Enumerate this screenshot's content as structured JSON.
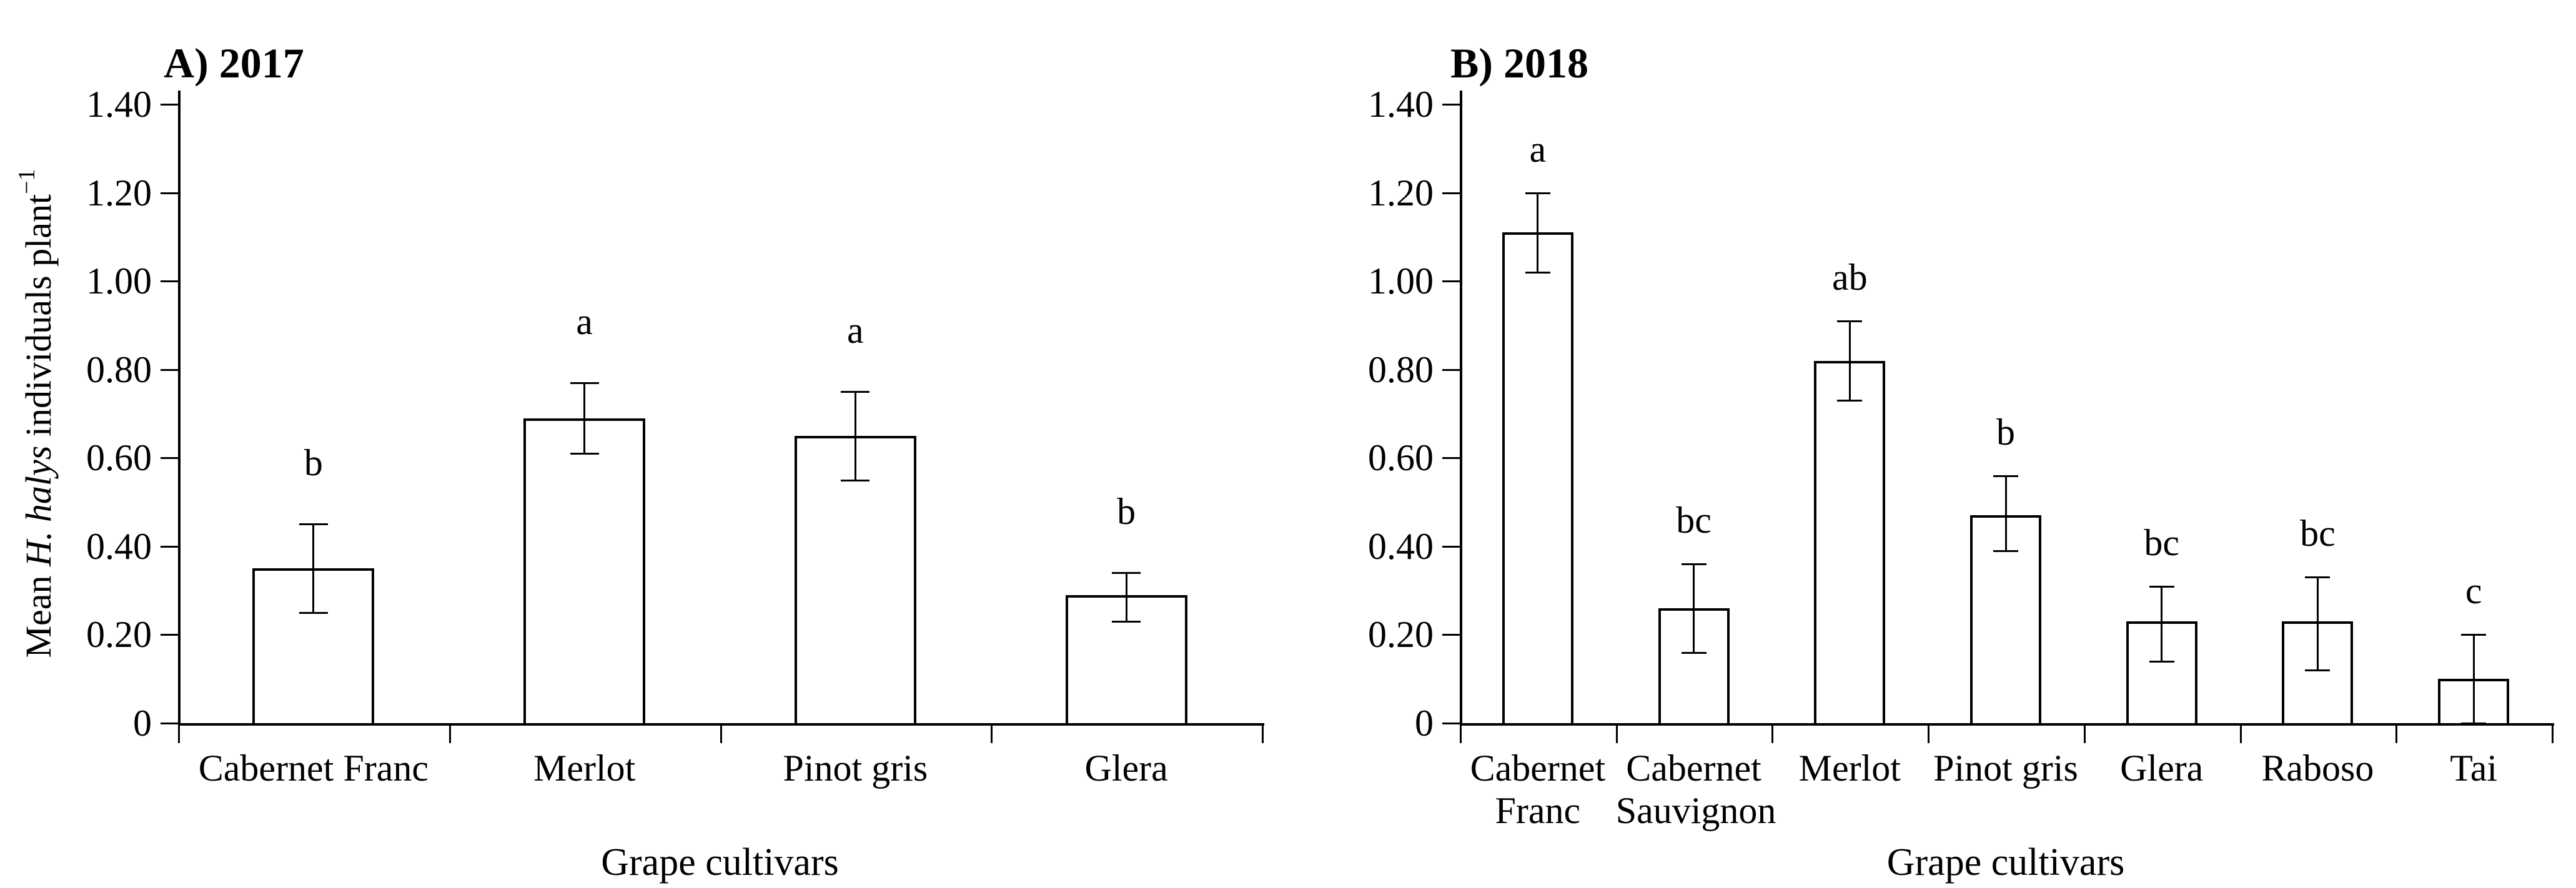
{
  "chart_data": [
    {
      "type": "bar",
      "panel": "A",
      "title": "A) 2017",
      "xlabel": "Grape cultivars",
      "ylabel": "Mean H. halys individuals plant⁻¹",
      "ylabel_rich": [
        {
          "t": "Mean "
        },
        {
          "t": "H. halys",
          "italic": true
        },
        {
          "t": " individuals plant"
        },
        {
          "t": "−1",
          "sup": true
        }
      ],
      "categories": [
        "Cabernet Franc",
        "Merlot",
        "Pinot gris",
        "Glera"
      ],
      "category_label_lines": [
        [
          "Cabernet Franc"
        ],
        [
          "Merlot"
        ],
        [
          "Pinot gris"
        ],
        [
          "Glera"
        ]
      ],
      "values": [
        0.35,
        0.69,
        0.65,
        0.29
      ],
      "error_low": [
        0.25,
        0.61,
        0.55,
        0.23
      ],
      "error_high": [
        0.45,
        0.77,
        0.75,
        0.34
      ],
      "sig_letters": [
        "b",
        "a",
        "a",
        "b"
      ],
      "ylim": [
        0,
        1.4
      ],
      "ytick_values": [
        1.4,
        1.2,
        1.0,
        0.8,
        0.6,
        0.4,
        0.2,
        0
      ],
      "ytick_labels": [
        "1.40",
        "1.20",
        "1.00",
        "0.80",
        "0.60",
        "0.40",
        "0.20",
        "0"
      ],
      "grid": false,
      "legend": null,
      "bar_fill": "#ffffff",
      "bar_border": "#000000",
      "axis_color": "#000000",
      "background": "#ffffff"
    },
    {
      "type": "bar",
      "panel": "B",
      "title": "B) 2018",
      "xlabel": "Grape cultivars",
      "ylabel": null,
      "categories": [
        "Cabernet Franc",
        "Cabernet Sauvignon",
        "Merlot",
        "Pinot gris",
        "Glera",
        "Raboso",
        "Tai"
      ],
      "category_label_lines": [
        [
          "Cabernet",
          "Franc"
        ],
        [
          "Cabernet",
          "Sauvignon"
        ],
        [
          "Merlot"
        ],
        [
          "Pinot gris"
        ],
        [
          "Glera"
        ],
        [
          "Raboso"
        ],
        [
          "Tai"
        ]
      ],
      "values": [
        1.11,
        0.26,
        0.82,
        0.47,
        0.23,
        0.23,
        0.1
      ],
      "error_low": [
        1.02,
        0.16,
        0.73,
        0.39,
        0.14,
        0.12,
        0.0
      ],
      "error_high": [
        1.2,
        0.36,
        0.91,
        0.56,
        0.31,
        0.33,
        0.2
      ],
      "sig_letters": [
        "a",
        "bc",
        "ab",
        "b",
        "bc",
        "bc",
        "c"
      ],
      "ylim": [
        0,
        1.4
      ],
      "ytick_values": [
        1.4,
        1.2,
        1.0,
        0.8,
        0.6,
        0.4,
        0.2,
        0
      ],
      "ytick_labels": [
        "1.40",
        "1.20",
        "1.00",
        "0.80",
        "0.60",
        "0.40",
        "0.20",
        "0"
      ],
      "grid": false,
      "legend": null,
      "bar_fill": "#ffffff",
      "bar_border": "#000000",
      "axis_color": "#000000",
      "background": "#ffffff"
    }
  ]
}
